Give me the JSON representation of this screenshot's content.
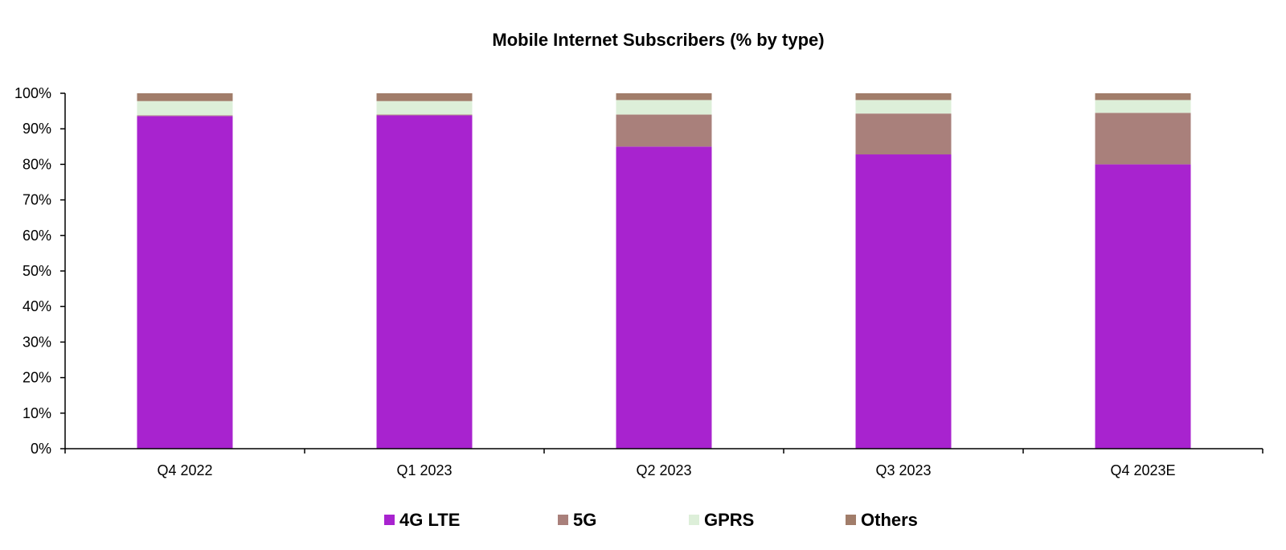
{
  "chart_data": {
    "type": "bar",
    "stacked": true,
    "title": "Mobile Internet Subscribers (% by type)",
    "xlabel": "",
    "ylabel": "",
    "categories": [
      "Q4 2022",
      "Q1 2023",
      "Q2 2023",
      "Q3 2023",
      "Q4 2023E"
    ],
    "ylim": [
      0,
      100
    ],
    "yticks": [
      "0%",
      "10%",
      "20%",
      "30%",
      "40%",
      "50%",
      "60%",
      "70%",
      "80%",
      "90%",
      "100%"
    ],
    "grid": false,
    "legend_position": "bottom",
    "series": [
      {
        "name": "4G LTE",
        "color": "#A823CF",
        "values": [
          93.6,
          93.8,
          85.0,
          82.8,
          80.0
        ]
      },
      {
        "name": "5G",
        "color": "#A9807B",
        "values": [
          0.2,
          0.2,
          9.0,
          11.5,
          14.5
        ]
      },
      {
        "name": "GPRS",
        "color": "#DDEFD9",
        "values": [
          4.0,
          3.8,
          4.1,
          3.8,
          3.6
        ]
      },
      {
        "name": "Others",
        "color": "#A17D6A",
        "values": [
          2.2,
          2.2,
          1.9,
          1.9,
          1.9
        ]
      }
    ]
  }
}
